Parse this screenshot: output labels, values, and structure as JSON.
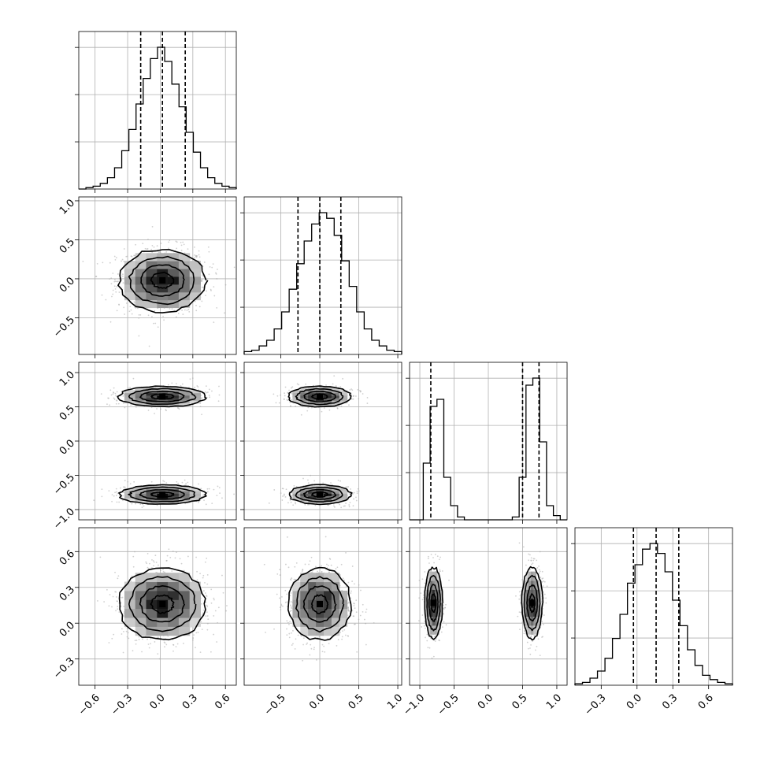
{
  "chart_data": {
    "type": "corner",
    "n_params": 4,
    "grid": true,
    "quantiles": [
      0.16,
      0.5,
      0.84
    ],
    "params": [
      {
        "range": [
          -0.75,
          0.7
        ],
        "ticks": [
          -0.6,
          -0.3,
          0.0,
          0.3,
          0.6
        ],
        "tick_labels": [
          "−0.6",
          "−0.3",
          "0.0",
          "0.3",
          "0.6"
        ],
        "quantile_values": [
          -0.18,
          0.02,
          0.23
        ]
      },
      {
        "range": [
          -0.97,
          1.05
        ],
        "ticks": [
          -0.5,
          0.0,
          0.5,
          1.0
        ],
        "tick_labels": [
          "−0.5",
          "0.0",
          "0.5",
          "1.0"
        ],
        "quantile_values": [
          -0.28,
          0.0,
          0.27
        ]
      },
      {
        "range": [
          -1.15,
          1.15
        ],
        "ticks": [
          -1.0,
          -0.5,
          0.0,
          0.5,
          1.0
        ],
        "tick_labels": [
          "−1.0",
          "−0.5",
          "0.0",
          "0.5",
          "1.0"
        ],
        "quantile_values": [
          -0.84,
          0.5,
          0.74
        ]
      },
      {
        "range": [
          -0.52,
          0.8
        ],
        "ticks": [
          -0.3,
          0.0,
          0.3,
          0.6
        ],
        "tick_labels": [
          "−0.3",
          "0.0",
          "0.3",
          "0.6"
        ],
        "quantile_values": [
          -0.03,
          0.16,
          0.35
        ]
      }
    ],
    "marginal_histograms": [
      {
        "param": 0,
        "bin_edges": [
          -0.75,
          0.7
        ],
        "counts": [
          0.0,
          0.01,
          0.02,
          0.04,
          0.08,
          0.15,
          0.27,
          0.42,
          0.6,
          0.78,
          0.92,
          1.0,
          0.9,
          0.74,
          0.58,
          0.4,
          0.26,
          0.15,
          0.08,
          0.04,
          0.02,
          0.01
        ]
      },
      {
        "param": 1,
        "bin_edges": [
          -0.97,
          1.05
        ],
        "counts": [
          0.02,
          0.03,
          0.06,
          0.1,
          0.18,
          0.3,
          0.46,
          0.64,
          0.8,
          0.92,
          1.0,
          0.96,
          0.84,
          0.66,
          0.48,
          0.3,
          0.18,
          0.1,
          0.06,
          0.03,
          0.02
        ]
      },
      {
        "param": 2,
        "bin_edges": [
          -1.15,
          1.15
        ],
        "counts": [
          0.0,
          0.0,
          0.4,
          0.8,
          0.85,
          0.3,
          0.1,
          0.02,
          0.0,
          0.0,
          0.0,
          0.0,
          0.0,
          0.0,
          0.0,
          0.02,
          0.3,
          0.95,
          1.0,
          0.55,
          0.1,
          0.03,
          0.0
        ]
      },
      {
        "param": 3,
        "bin_edges": [
          -0.52,
          0.8
        ],
        "counts": [
          0.01,
          0.02,
          0.05,
          0.1,
          0.19,
          0.33,
          0.5,
          0.72,
          0.85,
          0.96,
          1.0,
          0.93,
          0.8,
          0.6,
          0.42,
          0.25,
          0.14,
          0.07,
          0.04,
          0.02,
          0.01
        ]
      }
    ],
    "pair_plots": [
      {
        "x_param": 0,
        "y_param": 1,
        "modes": [
          {
            "x": 0.02,
            "y": -0.02,
            "sx": 0.2,
            "sy": 0.2
          }
        ]
      },
      {
        "x_param": 0,
        "y_param": 2,
        "modes": [
          {
            "x": 0.02,
            "y": 0.65,
            "sx": 0.2,
            "sy": 0.075
          },
          {
            "x": 0.02,
            "y": -0.78,
            "sx": 0.2,
            "sy": 0.07
          }
        ]
      },
      {
        "x_param": 1,
        "y_param": 2,
        "modes": [
          {
            "x": 0.0,
            "y": 0.65,
            "sx": 0.2,
            "sy": 0.075
          },
          {
            "x": 0.0,
            "y": -0.78,
            "sx": 0.2,
            "sy": 0.07
          }
        ]
      },
      {
        "x_param": 0,
        "y_param": 3,
        "modes": [
          {
            "x": 0.02,
            "y": 0.16,
            "sx": 0.2,
            "sy": 0.15
          }
        ]
      },
      {
        "x_param": 1,
        "y_param": 3,
        "modes": [
          {
            "x": 0.0,
            "y": 0.16,
            "sx": 0.2,
            "sy": 0.15
          }
        ]
      },
      {
        "x_param": 2,
        "y_param": 3,
        "modes": [
          {
            "x": -0.8,
            "y": 0.17,
            "sx": 0.065,
            "sy": 0.15
          },
          {
            "x": 0.64,
            "y": 0.17,
            "sx": 0.075,
            "sy": 0.15
          }
        ]
      }
    ],
    "colors": {
      "line": "#000000",
      "grid": "#b0b0b0",
      "density_dark": "#000000",
      "points": "#aaaaaa",
      "background": "#ffffff"
    }
  }
}
